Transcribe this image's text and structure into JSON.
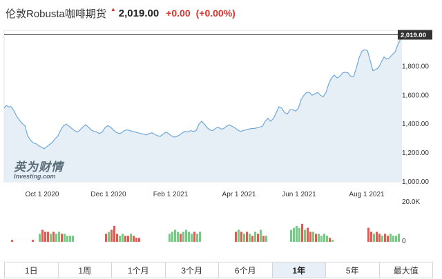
{
  "header": {
    "title": "伦敦Robusta咖啡期货",
    "price": "2,019.00",
    "change": "+0.00",
    "change_pct": "(+0.00%)",
    "up_color": "#d9342b"
  },
  "logo": {
    "cn": "英为财情",
    "en": "Investing.com"
  },
  "chart_data": {
    "type": "area",
    "x_ticks": [
      "Oct 1 2020",
      "Dec 1 2020",
      "Feb 1 2021",
      "Apr 1 2021",
      "Jun 1 2021",
      "Aug 1 2021"
    ],
    "y_ticks": [
      "1,000.00",
      "1,200.00",
      "1,400.00",
      "1,600.00",
      "1,800.00"
    ],
    "ylim": [
      1000,
      2050
    ],
    "last_value": 2019,
    "last_label": "2,019.00",
    "line_color": "#6fa8dc",
    "fill_color": "#e6eef6",
    "price_series": [
      [
        0,
        1510
      ],
      [
        3,
        1530
      ],
      [
        6,
        1520
      ],
      [
        10,
        1520
      ],
      [
        14,
        1495
      ],
      [
        18,
        1455
      ],
      [
        22,
        1430
      ],
      [
        26,
        1405
      ],
      [
        30,
        1390
      ],
      [
        34,
        1320
      ],
      [
        38,
        1290
      ],
      [
        42,
        1270
      ],
      [
        46,
        1265
      ],
      [
        50,
        1250
      ],
      [
        54,
        1240
      ],
      [
        58,
        1230
      ],
      [
        62,
        1245
      ],
      [
        66,
        1260
      ],
      [
        70,
        1275
      ],
      [
        74,
        1300
      ],
      [
        78,
        1320
      ],
      [
        82,
        1360
      ],
      [
        86,
        1390
      ],
      [
        90,
        1400
      ],
      [
        94,
        1385
      ],
      [
        98,
        1370
      ],
      [
        102,
        1355
      ],
      [
        106,
        1345
      ],
      [
        110,
        1360
      ],
      [
        114,
        1380
      ],
      [
        118,
        1395
      ],
      [
        122,
        1380
      ],
      [
        126,
        1360
      ],
      [
        130,
        1350
      ],
      [
        134,
        1345
      ],
      [
        138,
        1335
      ],
      [
        142,
        1345
      ],
      [
        146,
        1375
      ],
      [
        150,
        1390
      ],
      [
        154,
        1380
      ],
      [
        158,
        1360
      ],
      [
        162,
        1345
      ],
      [
        166,
        1335
      ],
      [
        170,
        1340
      ],
      [
        174,
        1355
      ],
      [
        178,
        1360
      ],
      [
        182,
        1355
      ],
      [
        186,
        1350
      ],
      [
        190,
        1345
      ],
      [
        194,
        1340
      ],
      [
        198,
        1335
      ],
      [
        202,
        1330
      ],
      [
        206,
        1325
      ],
      [
        210,
        1335
      ],
      [
        214,
        1340
      ],
      [
        218,
        1330
      ],
      [
        222,
        1320
      ],
      [
        226,
        1315
      ],
      [
        230,
        1330
      ],
      [
        234,
        1345
      ],
      [
        238,
        1335
      ],
      [
        242,
        1320
      ],
      [
        246,
        1310
      ],
      [
        250,
        1315
      ],
      [
        254,
        1325
      ],
      [
        258,
        1340
      ],
      [
        262,
        1350
      ],
      [
        266,
        1345
      ],
      [
        270,
        1355
      ],
      [
        274,
        1350
      ],
      [
        278,
        1355
      ],
      [
        282,
        1400
      ],
      [
        286,
        1420
      ],
      [
        290,
        1400
      ],
      [
        294,
        1375
      ],
      [
        298,
        1360
      ],
      [
        302,
        1355
      ],
      [
        306,
        1370
      ],
      [
        310,
        1380
      ],
      [
        314,
        1365
      ],
      [
        318,
        1370
      ],
      [
        322,
        1385
      ],
      [
        326,
        1395
      ],
      [
        330,
        1385
      ],
      [
        334,
        1375
      ],
      [
        338,
        1360
      ],
      [
        342,
        1350
      ],
      [
        346,
        1355
      ],
      [
        350,
        1360
      ],
      [
        354,
        1365
      ],
      [
        358,
        1370
      ],
      [
        362,
        1370
      ],
      [
        366,
        1375
      ],
      [
        370,
        1380
      ],
      [
        374,
        1385
      ],
      [
        378,
        1420
      ],
      [
        382,
        1440
      ],
      [
        386,
        1420
      ],
      [
        390,
        1440
      ],
      [
        394,
        1480
      ],
      [
        398,
        1520
      ],
      [
        402,
        1510
      ],
      [
        406,
        1480
      ],
      [
        410,
        1470
      ],
      [
        414,
        1500
      ],
      [
        418,
        1500
      ],
      [
        422,
        1490
      ],
      [
        426,
        1510
      ],
      [
        430,
        1570
      ],
      [
        434,
        1600
      ],
      [
        438,
        1620
      ],
      [
        442,
        1620
      ],
      [
        446,
        1600
      ],
      [
        450,
        1610
      ],
      [
        454,
        1620
      ],
      [
        458,
        1600
      ],
      [
        462,
        1590
      ],
      [
        466,
        1620
      ],
      [
        470,
        1680
      ],
      [
        474,
        1720
      ],
      [
        478,
        1740
      ],
      [
        482,
        1720
      ],
      [
        486,
        1730
      ],
      [
        490,
        1755
      ],
      [
        494,
        1760
      ],
      [
        498,
        1755
      ],
      [
        502,
        1730
      ],
      [
        506,
        1730
      ],
      [
        510,
        1790
      ],
      [
        514,
        1860
      ],
      [
        518,
        1905
      ],
      [
        522,
        1915
      ],
      [
        526,
        1910
      ],
      [
        530,
        1840
      ],
      [
        534,
        1770
      ],
      [
        538,
        1780
      ],
      [
        542,
        1790
      ],
      [
        546,
        1830
      ],
      [
        550,
        1865
      ],
      [
        554,
        1850
      ],
      [
        558,
        1860
      ],
      [
        562,
        1880
      ],
      [
        566,
        1900
      ],
      [
        570,
        1950
      ],
      [
        574,
        1990
      ],
      [
        576,
        2019
      ]
    ],
    "volume_label": "20.0K",
    "volume_zero": "0",
    "volume_up_color": "#7fc48a",
    "volume_down_color": "#d4605a",
    "volume_bars": [
      [
        10,
        1,
        "d"
      ],
      [
        40,
        1,
        "d"
      ],
      [
        50,
        4,
        "u"
      ],
      [
        54,
        6,
        "d"
      ],
      [
        58,
        5,
        "d"
      ],
      [
        62,
        5,
        "d"
      ],
      [
        66,
        4,
        "u"
      ],
      [
        70,
        5,
        "d"
      ],
      [
        74,
        4,
        "u"
      ],
      [
        78,
        5,
        "u"
      ],
      [
        82,
        4,
        "d"
      ],
      [
        86,
        4,
        "u"
      ],
      [
        90,
        3,
        "u"
      ],
      [
        94,
        3,
        "u"
      ],
      [
        98,
        3,
        "u"
      ],
      [
        146,
        4,
        "d"
      ],
      [
        150,
        5,
        "u"
      ],
      [
        154,
        6,
        "d"
      ],
      [
        158,
        8,
        "d"
      ],
      [
        162,
        4,
        "d"
      ],
      [
        166,
        3,
        "u"
      ],
      [
        170,
        4,
        "u"
      ],
      [
        174,
        3,
        "d"
      ],
      [
        178,
        3,
        "d"
      ],
      [
        182,
        4,
        "u"
      ],
      [
        186,
        3,
        "d"
      ],
      [
        190,
        2,
        "d"
      ],
      [
        194,
        2,
        "d"
      ],
      [
        238,
        4,
        "u"
      ],
      [
        242,
        5,
        "u"
      ],
      [
        246,
        6,
        "u"
      ],
      [
        250,
        5,
        "u"
      ],
      [
        254,
        4,
        "d"
      ],
      [
        258,
        5,
        "u"
      ],
      [
        262,
        6,
        "u"
      ],
      [
        266,
        5,
        "u"
      ],
      [
        270,
        4,
        "u"
      ],
      [
        274,
        5,
        "d"
      ],
      [
        278,
        4,
        "u"
      ],
      [
        282,
        5,
        "u"
      ],
      [
        334,
        5,
        "d"
      ],
      [
        338,
        6,
        "u"
      ],
      [
        342,
        5,
        "d"
      ],
      [
        346,
        4,
        "u"
      ],
      [
        350,
        5,
        "d"
      ],
      [
        354,
        4,
        "u"
      ],
      [
        358,
        3,
        "d"
      ],
      [
        362,
        5,
        "u"
      ],
      [
        366,
        4,
        "d"
      ],
      [
        370,
        6,
        "u"
      ],
      [
        374,
        3,
        "d"
      ],
      [
        378,
        3,
        "u"
      ],
      [
        414,
        6,
        "u"
      ],
      [
        418,
        7,
        "u"
      ],
      [
        422,
        8,
        "u"
      ],
      [
        426,
        7,
        "u"
      ],
      [
        430,
        9,
        "d"
      ],
      [
        434,
        6,
        "u"
      ],
      [
        438,
        7,
        "d"
      ],
      [
        442,
        5,
        "d"
      ],
      [
        446,
        5,
        "u"
      ],
      [
        450,
        4,
        "d"
      ],
      [
        454,
        4,
        "u"
      ],
      [
        458,
        3,
        "u"
      ],
      [
        462,
        4,
        "u"
      ],
      [
        466,
        3,
        "u"
      ],
      [
        470,
        2,
        "d"
      ],
      [
        474,
        1,
        "u"
      ],
      [
        526,
        7,
        "d"
      ],
      [
        530,
        5,
        "d"
      ],
      [
        534,
        4,
        "u"
      ],
      [
        538,
        5,
        "d"
      ],
      [
        542,
        4,
        "d"
      ],
      [
        546,
        3,
        "u"
      ],
      [
        550,
        4,
        "d"
      ],
      [
        554,
        3,
        "d"
      ],
      [
        558,
        4,
        "u"
      ],
      [
        562,
        3,
        "u"
      ],
      [
        566,
        3,
        "u"
      ],
      [
        570,
        4,
        "u"
      ]
    ]
  },
  "tabs": [
    {
      "label": "1日",
      "active": false
    },
    {
      "label": "1周",
      "active": false
    },
    {
      "label": "1个月",
      "active": false
    },
    {
      "label": "3个月",
      "active": false
    },
    {
      "label": "6个月",
      "active": false
    },
    {
      "label": "1年",
      "active": true
    },
    {
      "label": "5年",
      "active": false
    },
    {
      "label": "最大值",
      "active": false
    }
  ]
}
